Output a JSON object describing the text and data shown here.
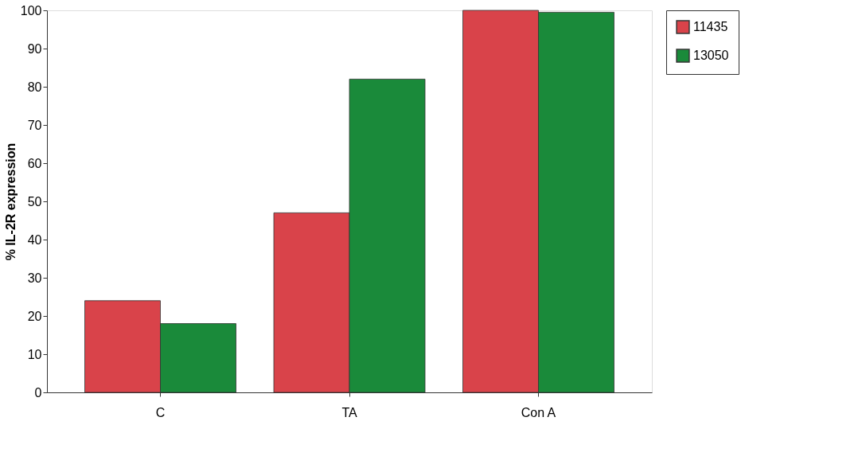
{
  "chart_data": {
    "type": "bar",
    "ylabel": "% IL-2R expression",
    "categories": [
      "C",
      "TA",
      "Con A"
    ],
    "series": [
      {
        "name": "11435",
        "color": "#d9434a",
        "values": [
          24,
          47,
          100
        ]
      },
      {
        "name": "13050",
        "color": "#1a8a3a",
        "values": [
          18,
          82,
          99.5
        ]
      }
    ],
    "ylim": [
      0,
      100
    ],
    "yticks": [
      0,
      10,
      20,
      30,
      40,
      50,
      60,
      70,
      80,
      90,
      100
    ],
    "grid": false,
    "legend": "right"
  }
}
